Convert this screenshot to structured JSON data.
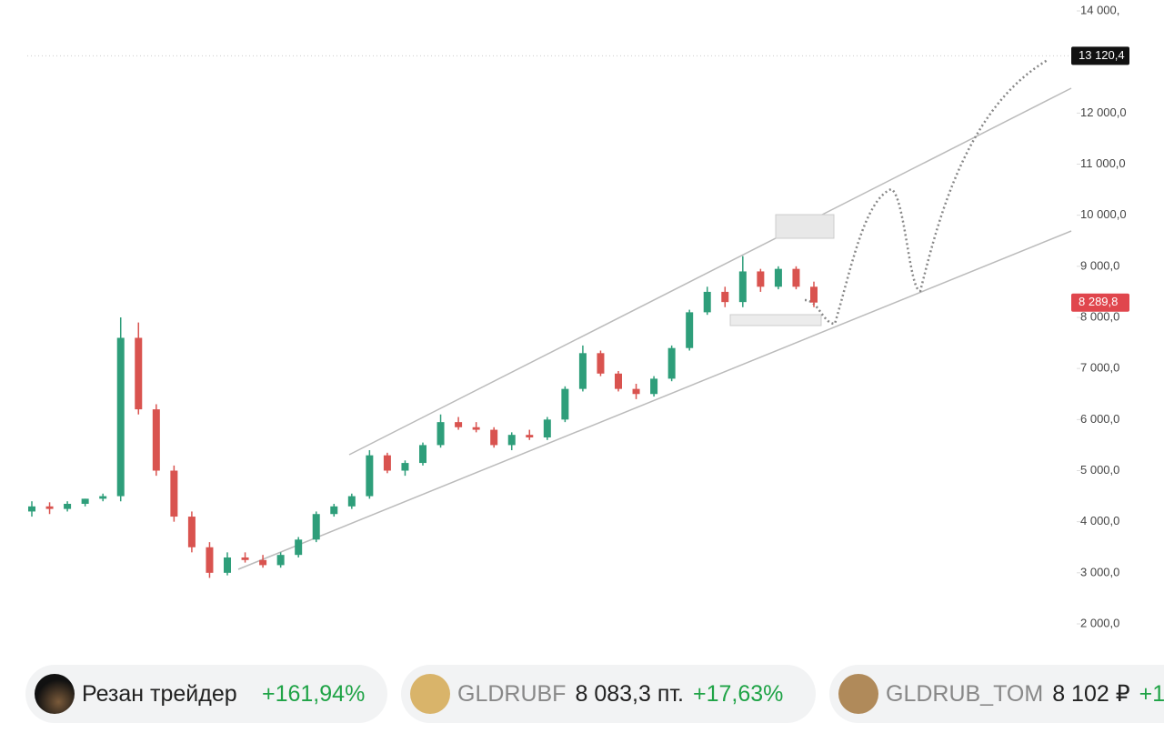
{
  "chart_data": {
    "type": "candlestick",
    "open": [
      4200,
      4300,
      4250,
      4350,
      4450,
      4500,
      7600,
      6200,
      5000,
      4100,
      3500,
      3000,
      3300,
      3250,
      3150,
      3350,
      3650,
      4150,
      4300,
      4500,
      5300,
      5000,
      5150,
      5500,
      5950,
      5850,
      5800,
      5500,
      5700,
      5650,
      6000,
      6600,
      7300,
      6900,
      6600,
      6500,
      6800,
      7400,
      8100,
      8500,
      8300,
      8900,
      8600,
      8950,
      8600
    ],
    "high": [
      4400,
      4380,
      4400,
      4450,
      4550,
      8000,
      7900,
      6300,
      5100,
      4200,
      3600,
      3400,
      3400,
      3350,
      3400,
      3700,
      4200,
      4350,
      4550,
      5400,
      5350,
      5200,
      5550,
      6100,
      6050,
      5950,
      5850,
      5750,
      5800,
      6050,
      6650,
      7450,
      7350,
      6950,
      6700,
      6850,
      7450,
      8150,
      8600,
      8600,
      9200,
      8950,
      9000,
      9000,
      8700
    ],
    "low": [
      4100,
      4150,
      4200,
      4300,
      4400,
      4400,
      6100,
      4900,
      4000,
      3400,
      2900,
      2950,
      3200,
      3100,
      3100,
      3300,
      3600,
      4100,
      4250,
      4450,
      4950,
      4900,
      5100,
      5450,
      5800,
      5750,
      5450,
      5400,
      5600,
      5600,
      5950,
      6550,
      6850,
      6550,
      6400,
      6450,
      6750,
      7350,
      8050,
      8200,
      8200,
      8500,
      8550,
      8550,
      8200
    ],
    "close": [
      4300,
      4250,
      4350,
      4450,
      4500,
      7600,
      6200,
      5000,
      4100,
      3500,
      3000,
      3300,
      3250,
      3150,
      3350,
      3650,
      4150,
      4300,
      4500,
      5300,
      5000,
      5150,
      5500,
      5950,
      5850,
      5800,
      5500,
      5700,
      5650,
      6000,
      6600,
      7300,
      6900,
      6600,
      6500,
      6800,
      7400,
      8100,
      8500,
      8300,
      8900,
      8600,
      8950,
      8600,
      8290
    ],
    "up_color": "#2e9e7a",
    "down_color": "#d9534f",
    "ylim": [
      2000,
      14000
    ],
    "yticks": [
      {
        "value": 2000,
        "label": "2 000,0"
      },
      {
        "value": 3000,
        "label": "3 000,0"
      },
      {
        "value": 4000,
        "label": "4 000,0"
      },
      {
        "value": 5000,
        "label": "5 000,0"
      },
      {
        "value": 6000,
        "label": "6 000,0"
      },
      {
        "value": 7000,
        "label": "7 000,0"
      },
      {
        "value": 8000,
        "label": "8 000,0"
      },
      {
        "value": 9000,
        "label": "9 000,0"
      },
      {
        "value": 10000,
        "label": "10 000,0"
      },
      {
        "value": 11000,
        "label": "11 000,0"
      },
      {
        "value": 12000,
        "label": "12 000,0"
      },
      {
        "value": 14000,
        "label": "14 000,"
      }
    ],
    "price_labels": [
      {
        "value": 13120.4,
        "label": "13 120,4",
        "color": "#111111"
      },
      {
        "value": 8289.8,
        "label": "8 289,8",
        "color": "#e0464d"
      }
    ]
  },
  "chips": [
    {
      "name": "Резан трейдер",
      "change": "+161,94%"
    },
    {
      "ticker": "GLDRUBF",
      "price": "8 083,3 пт.",
      "change": "+17,63%"
    },
    {
      "ticker": "GLDRUB_TOM",
      "price": "8 102 ₽",
      "change": "+1"
    }
  ]
}
